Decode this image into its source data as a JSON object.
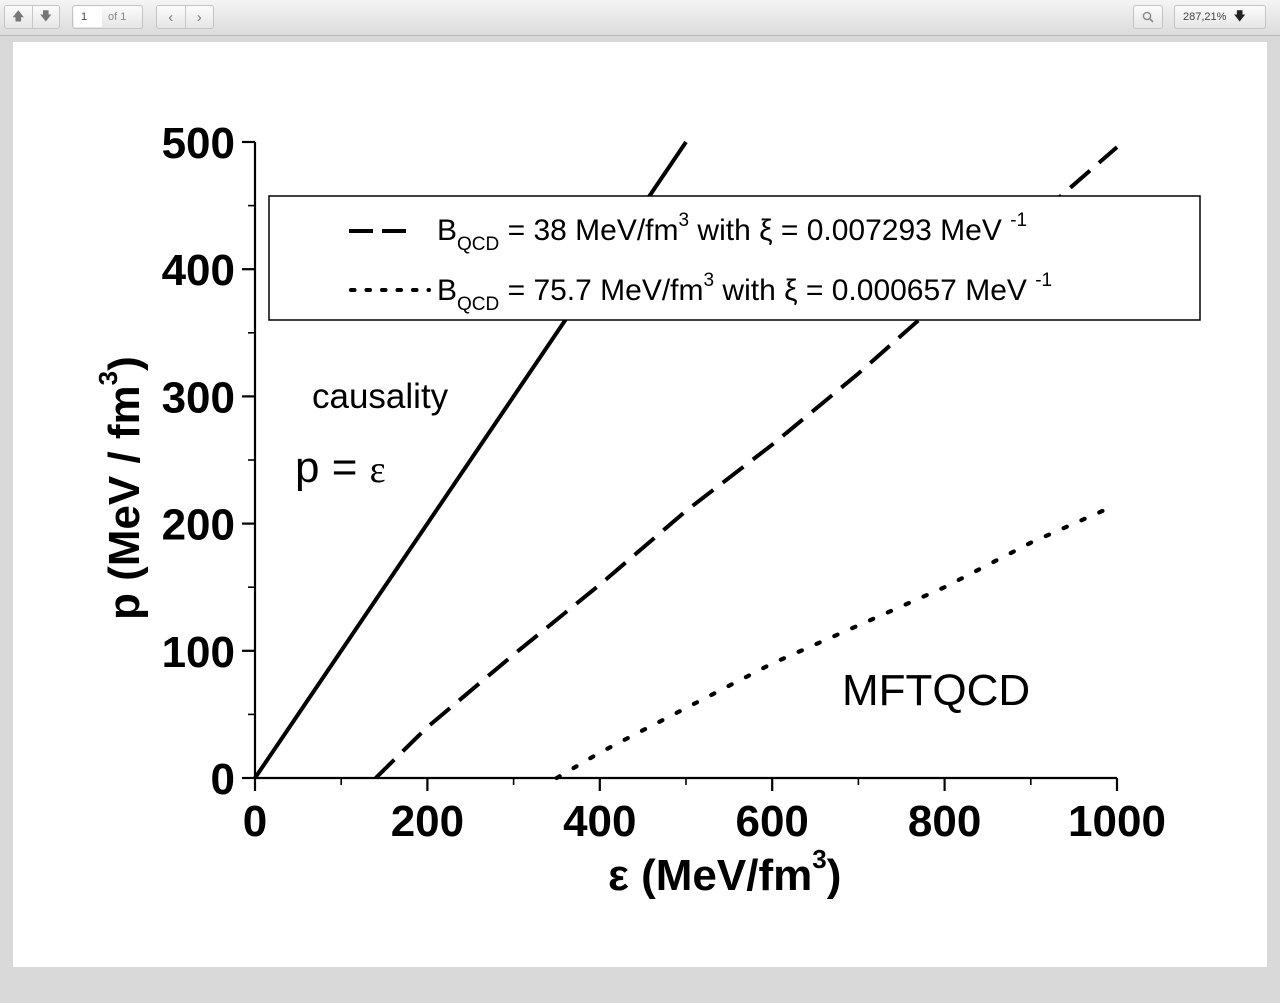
{
  "toolbar": {
    "page_number": "1",
    "page_total": "of 1",
    "zoom": "287,21%"
  },
  "chart_data": {
    "type": "line",
    "xlabel": "ε  (MeV/fm",
    "xlabel_sup": "3",
    "xlabel_close": ")",
    "ylabel": "p (MeV / fm",
    "ylabel_sup": "3",
    "ylabel_close": ")",
    "xlim": [
      0,
      1000
    ],
    "ylim": [
      0,
      500
    ],
    "xticks": [
      "0",
      "200",
      "400",
      "600",
      "800",
      "1000"
    ],
    "yticks": [
      "0",
      "100",
      "200",
      "300",
      "400",
      "500"
    ],
    "grid": false,
    "legend_position": "top",
    "series": [
      {
        "style": "solid",
        "x": [
          0,
          500
        ],
        "y": [
          0,
          500
        ]
      },
      {
        "style": "dashed",
        "legend_main": "B",
        "legend_sub": "QCD",
        "legend_value": " = 38 MeV/fm",
        "legend_sup": "3",
        "legend_with": "  with   ξ = 0.007293 MeV ",
        "legend_exp": "-1",
        "x": [
          140,
          200,
          300,
          400,
          500,
          600,
          700,
          800,
          900,
          1000
        ],
        "y": [
          0,
          40,
          97,
          152,
          210,
          262,
          318,
          378,
          437,
          496
        ]
      },
      {
        "style": "dotted",
        "legend_main": "B",
        "legend_sub": "QCD",
        "legend_value": " = 75.7 MeV/fm",
        "legend_sup": "3",
        "legend_with": "  with   ξ = 0.000657 MeV ",
        "legend_exp": "-1",
        "x": [
          350,
          400,
          500,
          600,
          700,
          800,
          900,
          1000
        ],
        "y": [
          0,
          20,
          55,
          90,
          120,
          150,
          185,
          215
        ]
      }
    ],
    "annotations": {
      "causality": "causality",
      "p_eq": "p = ",
      "p_eq_symbol": "ε",
      "model": "MFTQCD"
    }
  }
}
